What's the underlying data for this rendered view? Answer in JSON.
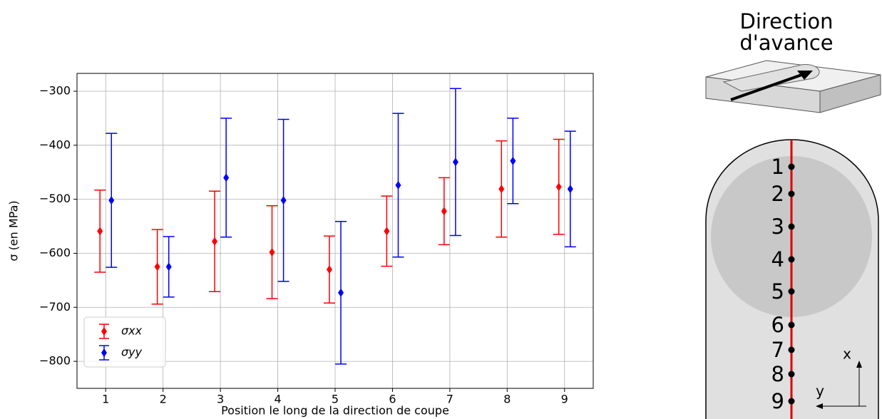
{
  "chart_data": {
    "type": "errorbar",
    "xlabel": "Position le long de la direction de coupe",
    "ylabel": "σ (en MPa)",
    "xlim": [
      0.5,
      9.5
    ],
    "xticks": [
      1,
      2,
      3,
      4,
      5,
      6,
      7,
      8,
      9
    ],
    "ylim": [
      -850,
      -267
    ],
    "yticks": [
      {
        "value": -300,
        "label": "−300"
      },
      {
        "value": -400,
        "label": "−400"
      },
      {
        "value": -500,
        "label": "−500"
      },
      {
        "value": -600,
        "label": "−600"
      },
      {
        "value": -700,
        "label": "−700"
      },
      {
        "value": -800,
        "label": "−800"
      }
    ],
    "grid": true,
    "legend": "lower left",
    "series": [
      {
        "name": "σxx",
        "color": "#ff0000",
        "x": [
          0.9,
          1.9,
          2.9,
          3.9,
          4.9,
          5.9,
          6.9,
          7.9,
          8.9
        ],
        "values": [
          -559,
          -625,
          -578,
          -598,
          -630,
          -559,
          -522,
          -481,
          -477
        ],
        "errors": [
          76,
          69,
          93,
          86,
          62,
          65,
          62,
          89,
          88
        ]
      },
      {
        "name": "σyy",
        "color": "#0000ff",
        "x": [
          1.1,
          2.1,
          3.1,
          4.1,
          5.1,
          6.1,
          7.1,
          8.1,
          9.1
        ],
        "values": [
          -502,
          -625,
          -460,
          -502,
          -673,
          -474,
          -431,
          -429,
          -481
        ],
        "errors": [
          124,
          56,
          110,
          150,
          132,
          133,
          136,
          79,
          107
        ]
      }
    ]
  },
  "diagram": {
    "title": [
      "Direction",
      "d'avance"
    ],
    "points": [
      "1",
      "2",
      "3",
      "4",
      "5",
      "6",
      "7",
      "8",
      "9"
    ],
    "axes": [
      "x",
      "y"
    ]
  }
}
